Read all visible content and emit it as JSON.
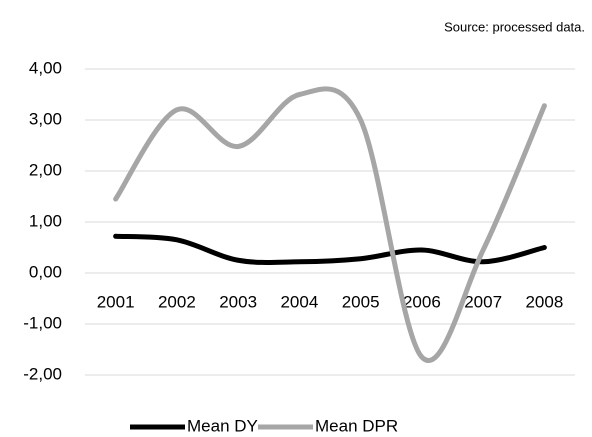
{
  "chart_data": {
    "type": "line",
    "source": "Source: processed data.",
    "categories": [
      "2001",
      "2002",
      "2003",
      "2004",
      "2005",
      "2006",
      "2007",
      "2008"
    ],
    "series": [
      {
        "name": "Mean DY",
        "color": "#000000",
        "values": [
          0.72,
          0.65,
          0.25,
          0.22,
          0.28,
          0.45,
          0.22,
          0.5
        ]
      },
      {
        "name": "Mean DPR",
        "color": "#a6a6a6",
        "values": [
          1.45,
          3.2,
          2.48,
          3.5,
          3.0,
          -1.65,
          0.45,
          3.28
        ]
      }
    ],
    "ylim": [
      -2,
      4
    ],
    "yticks": [
      {
        "value": -2,
        "label": "-2,00"
      },
      {
        "value": -1,
        "label": "-1,00"
      },
      {
        "value": 0,
        "label": "0,00"
      },
      {
        "value": 1,
        "label": "1,00"
      },
      {
        "value": 2,
        "label": "2,00"
      },
      {
        "value": 3,
        "label": "3,00"
      },
      {
        "value": 4,
        "label": "4,00"
      }
    ],
    "grid": true,
    "smooth": true,
    "legend": "bottom"
  }
}
